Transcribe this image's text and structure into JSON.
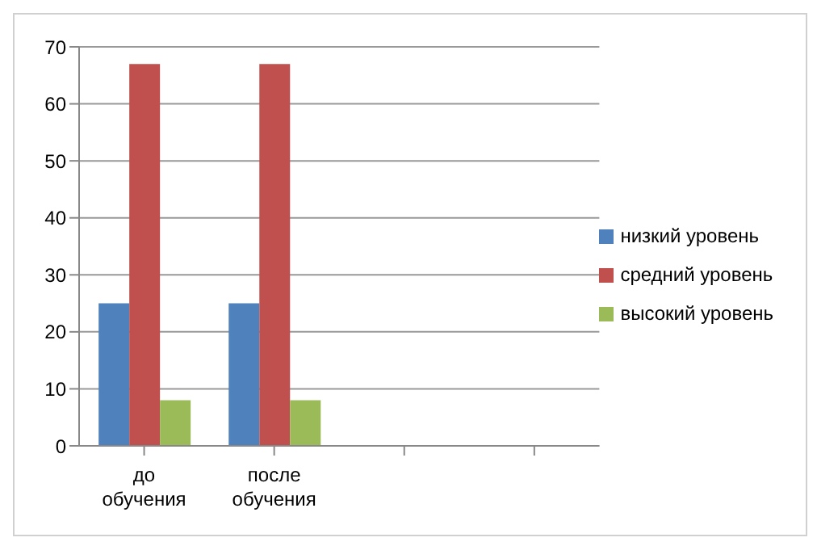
{
  "chart_data": {
    "type": "bar",
    "categories": [
      "до обучения",
      "после обучения",
      null,
      null
    ],
    "series": [
      {
        "name": "низкий уровень",
        "color": "#4f81bd",
        "values": [
          25,
          25,
          null,
          null
        ]
      },
      {
        "name": "средний уровень",
        "color": "#c0504d",
        "values": [
          67,
          67,
          null,
          null
        ]
      },
      {
        "name": "высокий уровень",
        "color": "#9bbb59",
        "values": [
          8,
          8,
          null,
          null
        ]
      }
    ],
    "ylim": [
      0,
      70
    ],
    "yticks": [
      0,
      10,
      20,
      30,
      40,
      50,
      60,
      70
    ],
    "grid": "y",
    "legend": "right"
  }
}
